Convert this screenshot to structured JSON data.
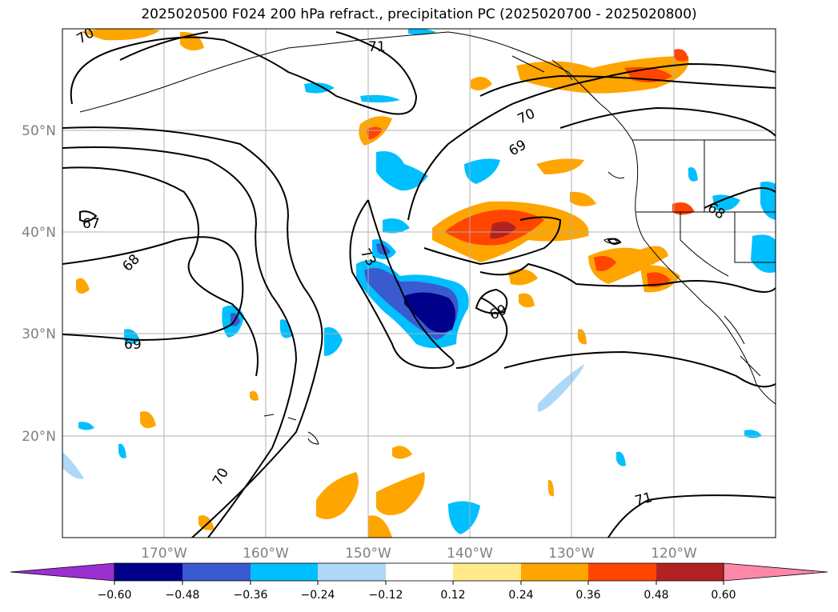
{
  "title": "2025020500 F024 200 hPa refract., precipitation PC (2025020700 - 2025020800)",
  "lon_ticks": [
    "170°W",
    "160°W",
    "150°W",
    "140°W",
    "130°W",
    "120°W"
  ],
  "lat_ticks": [
    "50°N",
    "40°N",
    "30°N",
    "20°N"
  ],
  "contour_labels": [
    "70",
    "71",
    "70",
    "69",
    "67",
    "68",
    "69",
    "73",
    "69",
    "68",
    "70",
    "71"
  ],
  "colorbar": {
    "ticks": [
      "−0.60",
      "−0.48",
      "−0.36",
      "−0.24",
      "−0.12",
      "0.12",
      "0.24",
      "0.36",
      "0.48",
      "0.60"
    ],
    "colors": [
      "#9b30d0",
      "#00008b",
      "#3a5ad0",
      "#00bfff",
      "#add8f6",
      "#ffffff",
      "#ffe98a",
      "#ffa500",
      "#ff4500",
      "#b22222",
      "#ff88aa"
    ]
  }
}
